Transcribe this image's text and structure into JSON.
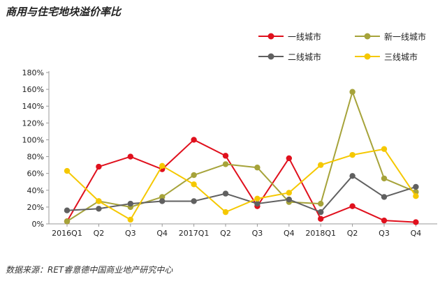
{
  "title": "商用与住宅地块溢价率比",
  "source": "数据来源：RET睿意德中国商业地产研究中心",
  "chart_data": {
    "type": "line",
    "categories": [
      "2016Q1",
      "Q2",
      "Q3",
      "Q4",
      "2017Q1",
      "Q2",
      "Q3",
      "Q4",
      "2018Q1",
      "Q2",
      "Q3",
      "Q4"
    ],
    "y_ticks": [
      "0%",
      "20%",
      "40%",
      "60%",
      "80%",
      "100%",
      "120%",
      "140%",
      "160%",
      "180%"
    ],
    "ylim": [
      0,
      180
    ],
    "series": [
      {
        "name": "一线城市",
        "color": "#e0101d",
        "values": [
          3,
          68,
          80,
          65,
          100,
          81,
          21,
          78,
          6,
          21,
          4,
          2
        ]
      },
      {
        "name": "新一线城市",
        "color": "#a6a33a",
        "values": [
          3,
          27,
          20,
          32,
          58,
          71,
          67,
          26,
          24,
          157,
          54,
          38
        ]
      },
      {
        "name": "二线城市",
        "color": "#606060",
        "values": [
          16,
          18,
          24,
          27,
          27,
          36,
          24,
          29,
          14,
          57,
          32,
          44
        ]
      },
      {
        "name": "三线城市",
        "color": "#f5c800",
        "values": [
          63,
          27,
          5,
          69,
          47,
          14,
          30,
          37,
          70,
          82,
          89,
          33
        ]
      }
    ],
    "legend": [
      "一线城市",
      "新一线城市",
      "二线城市",
      "三线城市"
    ]
  }
}
